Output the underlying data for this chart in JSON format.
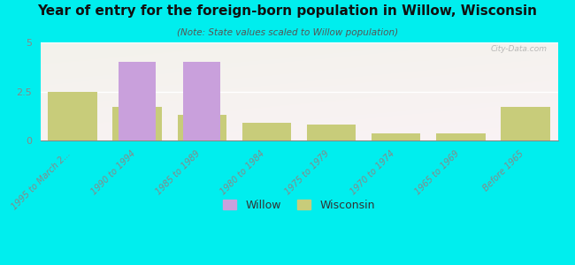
{
  "title": "Year of entry for the foreign-born population in Willow, Wisconsin",
  "subtitle": "(Note: State values scaled to Willow population)",
  "categories": [
    "1995 to March 2...",
    "1990 to 1994",
    "1985 to 1989",
    "1980 to 1984",
    "1975 to 1979",
    "1970 to 1974",
    "1965 to 1969",
    "Before 1965"
  ],
  "willow_values": [
    0,
    4.0,
    4.0,
    0,
    0,
    0,
    0,
    0
  ],
  "wisconsin_values": [
    2.5,
    1.7,
    1.3,
    0.9,
    0.8,
    0.35,
    0.35,
    1.7
  ],
  "willow_color": "#c9a0dc",
  "wisconsin_color": "#c8cc7a",
  "background_color": "#00eeee",
  "ylim": [
    0,
    5
  ],
  "yticks": [
    0,
    2.5,
    5
  ],
  "bar_width": 0.38,
  "watermark": "City-Data.com"
}
